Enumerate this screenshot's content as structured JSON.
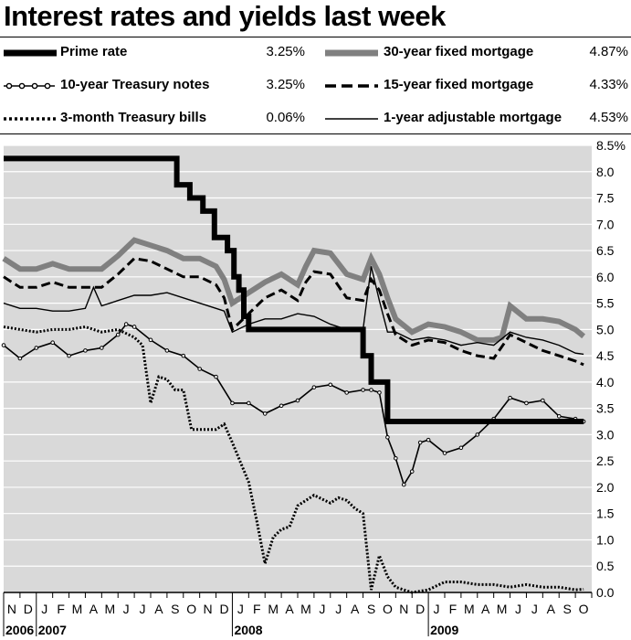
{
  "header": {
    "title": "Interest rates and yields last week"
  },
  "legend": {
    "prime": {
      "label": "Prime rate",
      "value": "3.25%"
    },
    "t10": {
      "label": "10-year Treasury notes",
      "value": "3.25%"
    },
    "t3m": {
      "label": "3-month Treasury bills",
      "value": "0.06%"
    },
    "m30": {
      "label": "30-year fixed mortgage",
      "value": "4.87%"
    },
    "m15": {
      "label": "15-year fixed mortgage",
      "value": "4.33%"
    },
    "arm1": {
      "label": "1-year adjustable mortgage",
      "value": "4.53%"
    }
  },
  "chart_data": {
    "type": "line",
    "title": "Interest rates and yields last week",
    "ylim": [
      0,
      8.5
    ],
    "yticks": [
      0.0,
      0.5,
      1.0,
      1.5,
      2.0,
      2.5,
      3.0,
      3.5,
      4.0,
      4.5,
      5.0,
      5.5,
      6.0,
      6.5,
      7.0,
      7.5,
      8.0,
      8.5
    ],
    "ytick_labels": [
      "0.0",
      "0.5",
      "1.0",
      "1.5",
      "2.0",
      "2.5",
      "3.0",
      "3.5",
      "4.0",
      "4.5",
      "5.0",
      "5.5",
      "6.0",
      "6.5",
      "7.0",
      "7.5",
      "8.0",
      "8.5%"
    ],
    "month_labels": [
      "N",
      "D",
      "J",
      "F",
      "M",
      "A",
      "M",
      "J",
      "J",
      "A",
      "S",
      "O",
      "N",
      "D",
      "J",
      "F",
      "M",
      "A",
      "M",
      "J",
      "J",
      "A",
      "S",
      "O",
      "N",
      "D",
      "J",
      "F",
      "M",
      "A",
      "M",
      "J",
      "J",
      "A",
      "S",
      "O"
    ],
    "year_labels": [
      {
        "label": "2006",
        "month_index": 0
      },
      {
        "label": "2007",
        "month_index": 2
      },
      {
        "label": "2008",
        "month_index": 14
      },
      {
        "label": "2009",
        "month_index": 26
      }
    ],
    "x_domain": [
      0,
      36
    ],
    "grid": true,
    "colors": {
      "plot_bg": "#d9d9d9",
      "grid": "#ffffff",
      "m30": "#808080",
      "ink": "#000000"
    },
    "series": [
      {
        "name": "Prime rate",
        "key": "prime",
        "style": "thick",
        "x": [
          0,
          10.6,
          10.6,
          11.4,
          11.4,
          12.2,
          12.2,
          12.9,
          12.9,
          13.7,
          13.7,
          14.1,
          14.1,
          14.4,
          14.4,
          14.7,
          14.7,
          15.0,
          15.0,
          16.1,
          16.1,
          22.0,
          22.0,
          22.5,
          22.5,
          23.0,
          23.0,
          23.5,
          23.5,
          24.5,
          24.5,
          35.5
        ],
        "y": [
          8.25,
          8.25,
          7.75,
          7.75,
          7.5,
          7.5,
          7.25,
          7.25,
          6.75,
          6.75,
          6.5,
          6.5,
          6.0,
          6.0,
          5.75,
          5.75,
          5.25,
          5.25,
          5.0,
          5.0,
          5.0,
          5.0,
          4.5,
          4.5,
          4.0,
          4.0,
          4.0,
          4.0,
          3.25,
          3.25,
          3.25,
          3.25
        ]
      },
      {
        "name": "30-year fixed mortgage",
        "key": "m30",
        "style": "gray",
        "x": [
          0,
          1,
          2,
          3,
          4,
          5,
          6,
          7,
          8,
          9,
          10,
          11,
          12,
          13,
          13.5,
          14,
          15,
          16,
          17,
          18,
          18.5,
          19,
          20,
          21,
          22,
          22.5,
          23,
          23.5,
          24,
          25,
          26,
          27,
          28,
          29,
          30,
          30.5,
          31,
          32,
          33,
          34,
          35,
          35.5
        ],
        "y": [
          6.35,
          6.15,
          6.15,
          6.25,
          6.15,
          6.15,
          6.15,
          6.4,
          6.7,
          6.6,
          6.5,
          6.35,
          6.35,
          6.2,
          5.95,
          5.5,
          5.7,
          5.9,
          6.05,
          5.85,
          6.2,
          6.5,
          6.45,
          6.05,
          5.95,
          6.35,
          6.05,
          5.6,
          5.2,
          4.95,
          5.1,
          5.05,
          4.95,
          4.8,
          4.8,
          4.85,
          5.45,
          5.2,
          5.2,
          5.15,
          5.0,
          4.87
        ]
      },
      {
        "name": "15-year fixed mortgage",
        "key": "m15",
        "style": "dashed",
        "x": [
          0,
          1,
          2,
          3,
          4,
          5,
          6,
          7,
          8,
          9,
          10,
          11,
          12,
          13,
          13.5,
          14,
          15,
          16,
          17,
          18,
          18.5,
          19,
          20,
          21,
          22,
          22.5,
          23,
          23.5,
          24,
          25,
          26,
          27,
          28,
          29,
          30,
          31,
          32,
          33,
          34,
          35,
          35.5
        ],
        "y": [
          6.0,
          5.8,
          5.8,
          5.9,
          5.8,
          5.8,
          5.8,
          6.05,
          6.35,
          6.3,
          6.15,
          6.0,
          6.0,
          5.85,
          5.6,
          5.0,
          5.3,
          5.6,
          5.75,
          5.55,
          5.9,
          6.1,
          6.05,
          5.6,
          5.55,
          5.95,
          5.75,
          5.3,
          4.9,
          4.7,
          4.8,
          4.75,
          4.6,
          4.5,
          4.45,
          4.9,
          4.75,
          4.6,
          4.5,
          4.4,
          4.33
        ]
      },
      {
        "name": "1-year adjustable mortgage",
        "key": "arm1",
        "style": "thin",
        "x": [
          0,
          1,
          2,
          3,
          4,
          5,
          5.5,
          6,
          7,
          8,
          9,
          10,
          11,
          12,
          13,
          13.5,
          14,
          15,
          16,
          17,
          18,
          19,
          20,
          21,
          22,
          22.5,
          23,
          23.5,
          24,
          25,
          26,
          27,
          28,
          29,
          30,
          31,
          32,
          33,
          34,
          35,
          35.5
        ],
        "y": [
          5.5,
          5.4,
          5.4,
          5.35,
          5.35,
          5.4,
          5.8,
          5.45,
          5.55,
          5.65,
          5.65,
          5.7,
          5.6,
          5.5,
          5.4,
          5.35,
          4.95,
          5.1,
          5.2,
          5.2,
          5.3,
          5.25,
          5.1,
          5.0,
          5.0,
          6.2,
          5.55,
          4.95,
          4.95,
          4.8,
          4.85,
          4.8,
          4.7,
          4.75,
          4.7,
          4.95,
          4.85,
          4.8,
          4.7,
          4.55,
          4.53
        ]
      },
      {
        "name": "10-year Treasury notes",
        "key": "t10",
        "style": "dotted-marker",
        "x": [
          0,
          1,
          2,
          3,
          4,
          5,
          6,
          7,
          7.5,
          8,
          9,
          10,
          11,
          12,
          13,
          14,
          15,
          16,
          17,
          18,
          19,
          20,
          21,
          22,
          22.5,
          23,
          23.5,
          24,
          24.5,
          25,
          25.5,
          26,
          27,
          28,
          29,
          30,
          31,
          32,
          33,
          34,
          35,
          35.5
        ],
        "y": [
          4.7,
          4.45,
          4.65,
          4.75,
          4.5,
          4.6,
          4.65,
          4.9,
          5.1,
          5.05,
          4.8,
          4.6,
          4.5,
          4.25,
          4.1,
          3.6,
          3.6,
          3.4,
          3.55,
          3.65,
          3.9,
          3.95,
          3.8,
          3.85,
          3.85,
          3.8,
          2.95,
          2.55,
          2.05,
          2.3,
          2.85,
          2.9,
          2.65,
          2.75,
          3.0,
          3.3,
          3.7,
          3.6,
          3.65,
          3.35,
          3.3,
          3.25
        ]
      },
      {
        "name": "3-month Treasury bills",
        "key": "t3m",
        "style": "dotted",
        "x": [
          0,
          1,
          2,
          3,
          4,
          5,
          6,
          7,
          8,
          8.5,
          9,
          9.5,
          10,
          10.5,
          11,
          11.5,
          12,
          13,
          13.5,
          14,
          15,
          15.5,
          16,
          16.5,
          17,
          17.5,
          18,
          19,
          20,
          20.5,
          21,
          21.5,
          22,
          22.5,
          23,
          23.5,
          24,
          25,
          26,
          27,
          28,
          29,
          30,
          31,
          32,
          33,
          34,
          35,
          35.5
        ],
        "y": [
          5.05,
          5.0,
          4.95,
          5.0,
          5.0,
          5.05,
          4.95,
          5.0,
          4.85,
          4.7,
          3.6,
          4.1,
          4.05,
          3.85,
          3.85,
          3.1,
          3.1,
          3.1,
          3.2,
          2.85,
          2.1,
          1.35,
          0.55,
          1.05,
          1.2,
          1.25,
          1.65,
          1.85,
          1.7,
          1.8,
          1.75,
          1.6,
          1.5,
          0.05,
          0.7,
          0.3,
          0.1,
          0.0,
          0.05,
          0.2,
          0.2,
          0.15,
          0.15,
          0.1,
          0.15,
          0.1,
          0.1,
          0.05,
          0.06
        ]
      }
    ]
  }
}
